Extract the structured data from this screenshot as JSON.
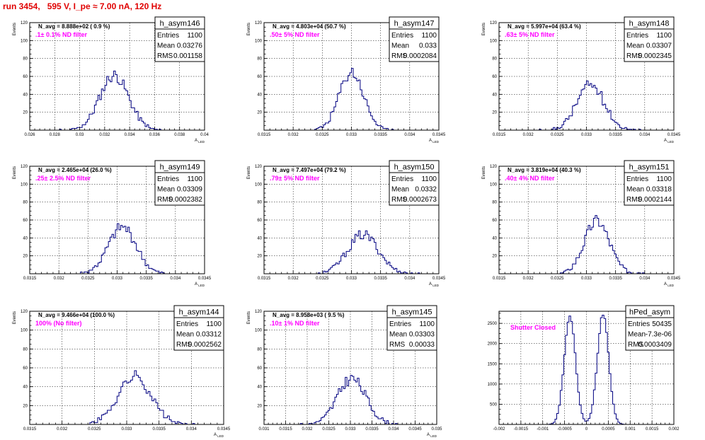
{
  "run_title": "run 3454,   595 V, I_pe ≈ 7.00 nA, 120 Hz",
  "chart_data": [
    {
      "type": "histogram",
      "name": "h_asym146",
      "navg": "N_avg = 8.888e+02 ( 0.9 %)",
      "note": ".1± 0.1% ND filter",
      "stats": {
        "entries": "1100",
        "mean": "0.03276",
        "rms": "0.001158"
      },
      "ylabel": "Events",
      "xlabel": "A_LED",
      "xlim": [
        0.026,
        0.04
      ],
      "ylim": [
        0,
        120
      ],
      "xticks": [
        0.026,
        0.028,
        0.03,
        0.032,
        0.034,
        0.036,
        0.038,
        0.04
      ],
      "xtick_labels": [
        "0.026",
        "0.028",
        "0.03",
        "0.032",
        "0.034",
        "0.036",
        "0.038",
        "0.04"
      ],
      "yticks": [
        20,
        40,
        60,
        80,
        100,
        120
      ],
      "mean": 0.03276,
      "sigma": 0.001158,
      "peak": 72,
      "seed": 11,
      "grid": true
    },
    {
      "type": "histogram",
      "name": "h_asym147",
      "navg": "N_avg = 4.803e+04 (50.7 %)",
      "note": ".50± 5% ND filter",
      "stats": {
        "entries": "1100",
        "mean": "0.033",
        "rms": "0.0002084"
      },
      "ylabel": "Events",
      "xlabel": "A_LED",
      "xlim": [
        0.0315,
        0.0345
      ],
      "ylim": [
        0,
        120
      ],
      "xticks": [
        0.0315,
        0.032,
        0.0325,
        0.033,
        0.0335,
        0.034,
        0.0345
      ],
      "xtick_labels": [
        "0.0315",
        "0.032",
        "0.0325",
        "0.033",
        "0.0335",
        "0.034",
        "0.0345"
      ],
      "yticks": [
        20,
        40,
        60,
        80,
        100,
        120
      ],
      "mean": 0.033,
      "sigma": 0.0002084,
      "peak": 76,
      "seed": 23,
      "grid": true
    },
    {
      "type": "histogram",
      "name": "h_asym148",
      "navg": "N_avg = 5.997e+04 (63.4 %)",
      "note": ".63± 5% ND filter",
      "stats": {
        "entries": "1100",
        "mean": "0.03307",
        "rms": "0.0002345"
      },
      "ylabel": "Events",
      "xlabel": "A_LED",
      "xlim": [
        0.0315,
        0.0345
      ],
      "ylim": [
        0,
        120
      ],
      "xticks": [
        0.0315,
        0.032,
        0.0325,
        0.033,
        0.0335,
        0.034,
        0.0345
      ],
      "xtick_labels": [
        "0.0315",
        "0.032",
        "0.0325",
        "0.033",
        "0.0335",
        "0.034",
        "0.0345"
      ],
      "yticks": [
        20,
        40,
        60,
        80,
        100,
        120
      ],
      "mean": 0.03307,
      "sigma": 0.0002345,
      "peak": 60,
      "seed": 37,
      "grid": true
    },
    {
      "type": "histogram",
      "name": "h_asym149",
      "navg": "N_avg = 2.465e+04 (26.0 %)",
      "note": ".25± 2.5% ND filter",
      "stats": {
        "entries": "1100",
        "mean": "0.03309",
        "rms": "0.0002382"
      },
      "ylabel": "Events",
      "xlabel": "A_LED",
      "xlim": [
        0.0315,
        0.0345
      ],
      "ylim": [
        0,
        120
      ],
      "xticks": [
        0.0315,
        0.032,
        0.0325,
        0.033,
        0.0335,
        0.034,
        0.0345
      ],
      "xtick_labels": [
        "0.0315",
        "0.032",
        "0.0325",
        "0.033",
        "0.0335",
        "0.034",
        "0.0345"
      ],
      "yticks": [
        20,
        40,
        60,
        80,
        100,
        120
      ],
      "mean": 0.03309,
      "sigma": 0.0002382,
      "peak": 61,
      "seed": 41,
      "grid": true
    },
    {
      "type": "histogram",
      "name": "h_asym150",
      "navg": "N_avg = 7.497e+04 (79.2 %)",
      "note": ".79± 5% ND filter",
      "stats": {
        "entries": "1100",
        "mean": "0.0332",
        "rms": "0.0002673"
      },
      "ylabel": "Events",
      "xlabel": "A_LED",
      "xlim": [
        0.0315,
        0.0345
      ],
      "ylim": [
        0,
        120
      ],
      "xticks": [
        0.0315,
        0.032,
        0.0325,
        0.033,
        0.0335,
        0.034,
        0.0345
      ],
      "xtick_labels": [
        "0.0315",
        "0.032",
        "0.0325",
        "0.033",
        "0.0335",
        "0.034",
        "0.0345"
      ],
      "yticks": [
        20,
        40,
        60,
        80,
        100,
        120
      ],
      "mean": 0.0332,
      "sigma": 0.0002673,
      "peak": 51,
      "seed": 53,
      "grid": true
    },
    {
      "type": "histogram",
      "name": "h_asym151",
      "navg": "N_avg = 3.819e+04 (40.3 %)",
      "note": ".40± 4% ND filter",
      "stats": {
        "entries": "1100",
        "mean": "0.03318",
        "rms": "0.0002144"
      },
      "ylabel": "Events",
      "xlabel": "A_LED",
      "xlim": [
        0.0315,
        0.0345
      ],
      "ylim": [
        0,
        120
      ],
      "xticks": [
        0.0315,
        0.032,
        0.0325,
        0.033,
        0.0335,
        0.034,
        0.0345
      ],
      "xtick_labels": [
        "0.0315",
        "0.032",
        "0.0325",
        "0.033",
        "0.0335",
        "0.034",
        "0.0345"
      ],
      "yticks": [
        20,
        40,
        60,
        80,
        100,
        120
      ],
      "mean": 0.03318,
      "sigma": 0.0002144,
      "peak": 70,
      "seed": 67,
      "grid": true
    },
    {
      "type": "histogram",
      "name": "h_asym144",
      "navg": "N_avg = 9.466e+04 (100.0 %)",
      "note": "100% (No filter)",
      "stats": {
        "entries": "1100",
        "mean": "0.03312",
        "rms": "0.0002562"
      },
      "ylabel": "Events",
      "xlabel": "A_LED",
      "xlim": [
        0.0315,
        0.0345
      ],
      "ylim": [
        0,
        120
      ],
      "xticks": [
        0.0315,
        0.032,
        0.0325,
        0.033,
        0.0335,
        0.034,
        0.0345
      ],
      "xtick_labels": [
        "0.0315",
        "0.032",
        "0.0325",
        "0.033",
        "0.0335",
        "0.034",
        "0.0345"
      ],
      "yticks": [
        20,
        40,
        60,
        80,
        100,
        120
      ],
      "mean": 0.03312,
      "sigma": 0.0002562,
      "peak": 60,
      "seed": 71,
      "grid": true
    },
    {
      "type": "histogram",
      "name": "h_asym145",
      "navg": "N_avg = 8.958e+03 ( 9.5 %)",
      "note": ".10± 1% ND filter",
      "stats": {
        "entries": "1100",
        "mean": "0.03303",
        "rms": "0.00033"
      },
      "ylabel": "Events",
      "xlabel": "A_LED",
      "xlim": [
        0.031,
        0.035
      ],
      "ylim": [
        0,
        120
      ],
      "xticks": [
        0.031,
        0.0315,
        0.032,
        0.0325,
        0.033,
        0.0335,
        0.034,
        0.0345,
        0.035
      ],
      "xtick_labels": [
        "0.031",
        "0.0315",
        "0.032",
        "0.0325",
        "0.033",
        "0.0335",
        "0.034",
        "0.0345",
        "0.035"
      ],
      "yticks": [
        20,
        40,
        60,
        80,
        100,
        120
      ],
      "mean": 0.03303,
      "sigma": 0.00033,
      "peak": 57,
      "seed": 83,
      "grid": true
    },
    {
      "type": "histogram",
      "name": "hPed_asym",
      "navg": "",
      "note": "Shutter Closed",
      "stats": {
        "entries": "50435",
        "mean": "-7.3e-06",
        "rms": "0.0003409"
      },
      "ylabel": "",
      "xlabel": "",
      "xlim": [
        -0.002,
        0.002
      ],
      "ylim": [
        0,
        2800
      ],
      "xticks": [
        -0.002,
        -0.0015,
        -0.001,
        -0.0005,
        0,
        0.0005,
        0.001,
        0.0015,
        0.002
      ],
      "xtick_labels": [
        "-0.002",
        "-0.0015",
        "-0.001",
        "-0.0005",
        "0",
        "0.0005",
        "0.001",
        "0.0015",
        "0.002"
      ],
      "yticks": [
        500,
        1000,
        1500,
        2000,
        2500
      ],
      "bimodal": true,
      "peak": 2750,
      "seed": 97,
      "grid": true
    }
  ]
}
